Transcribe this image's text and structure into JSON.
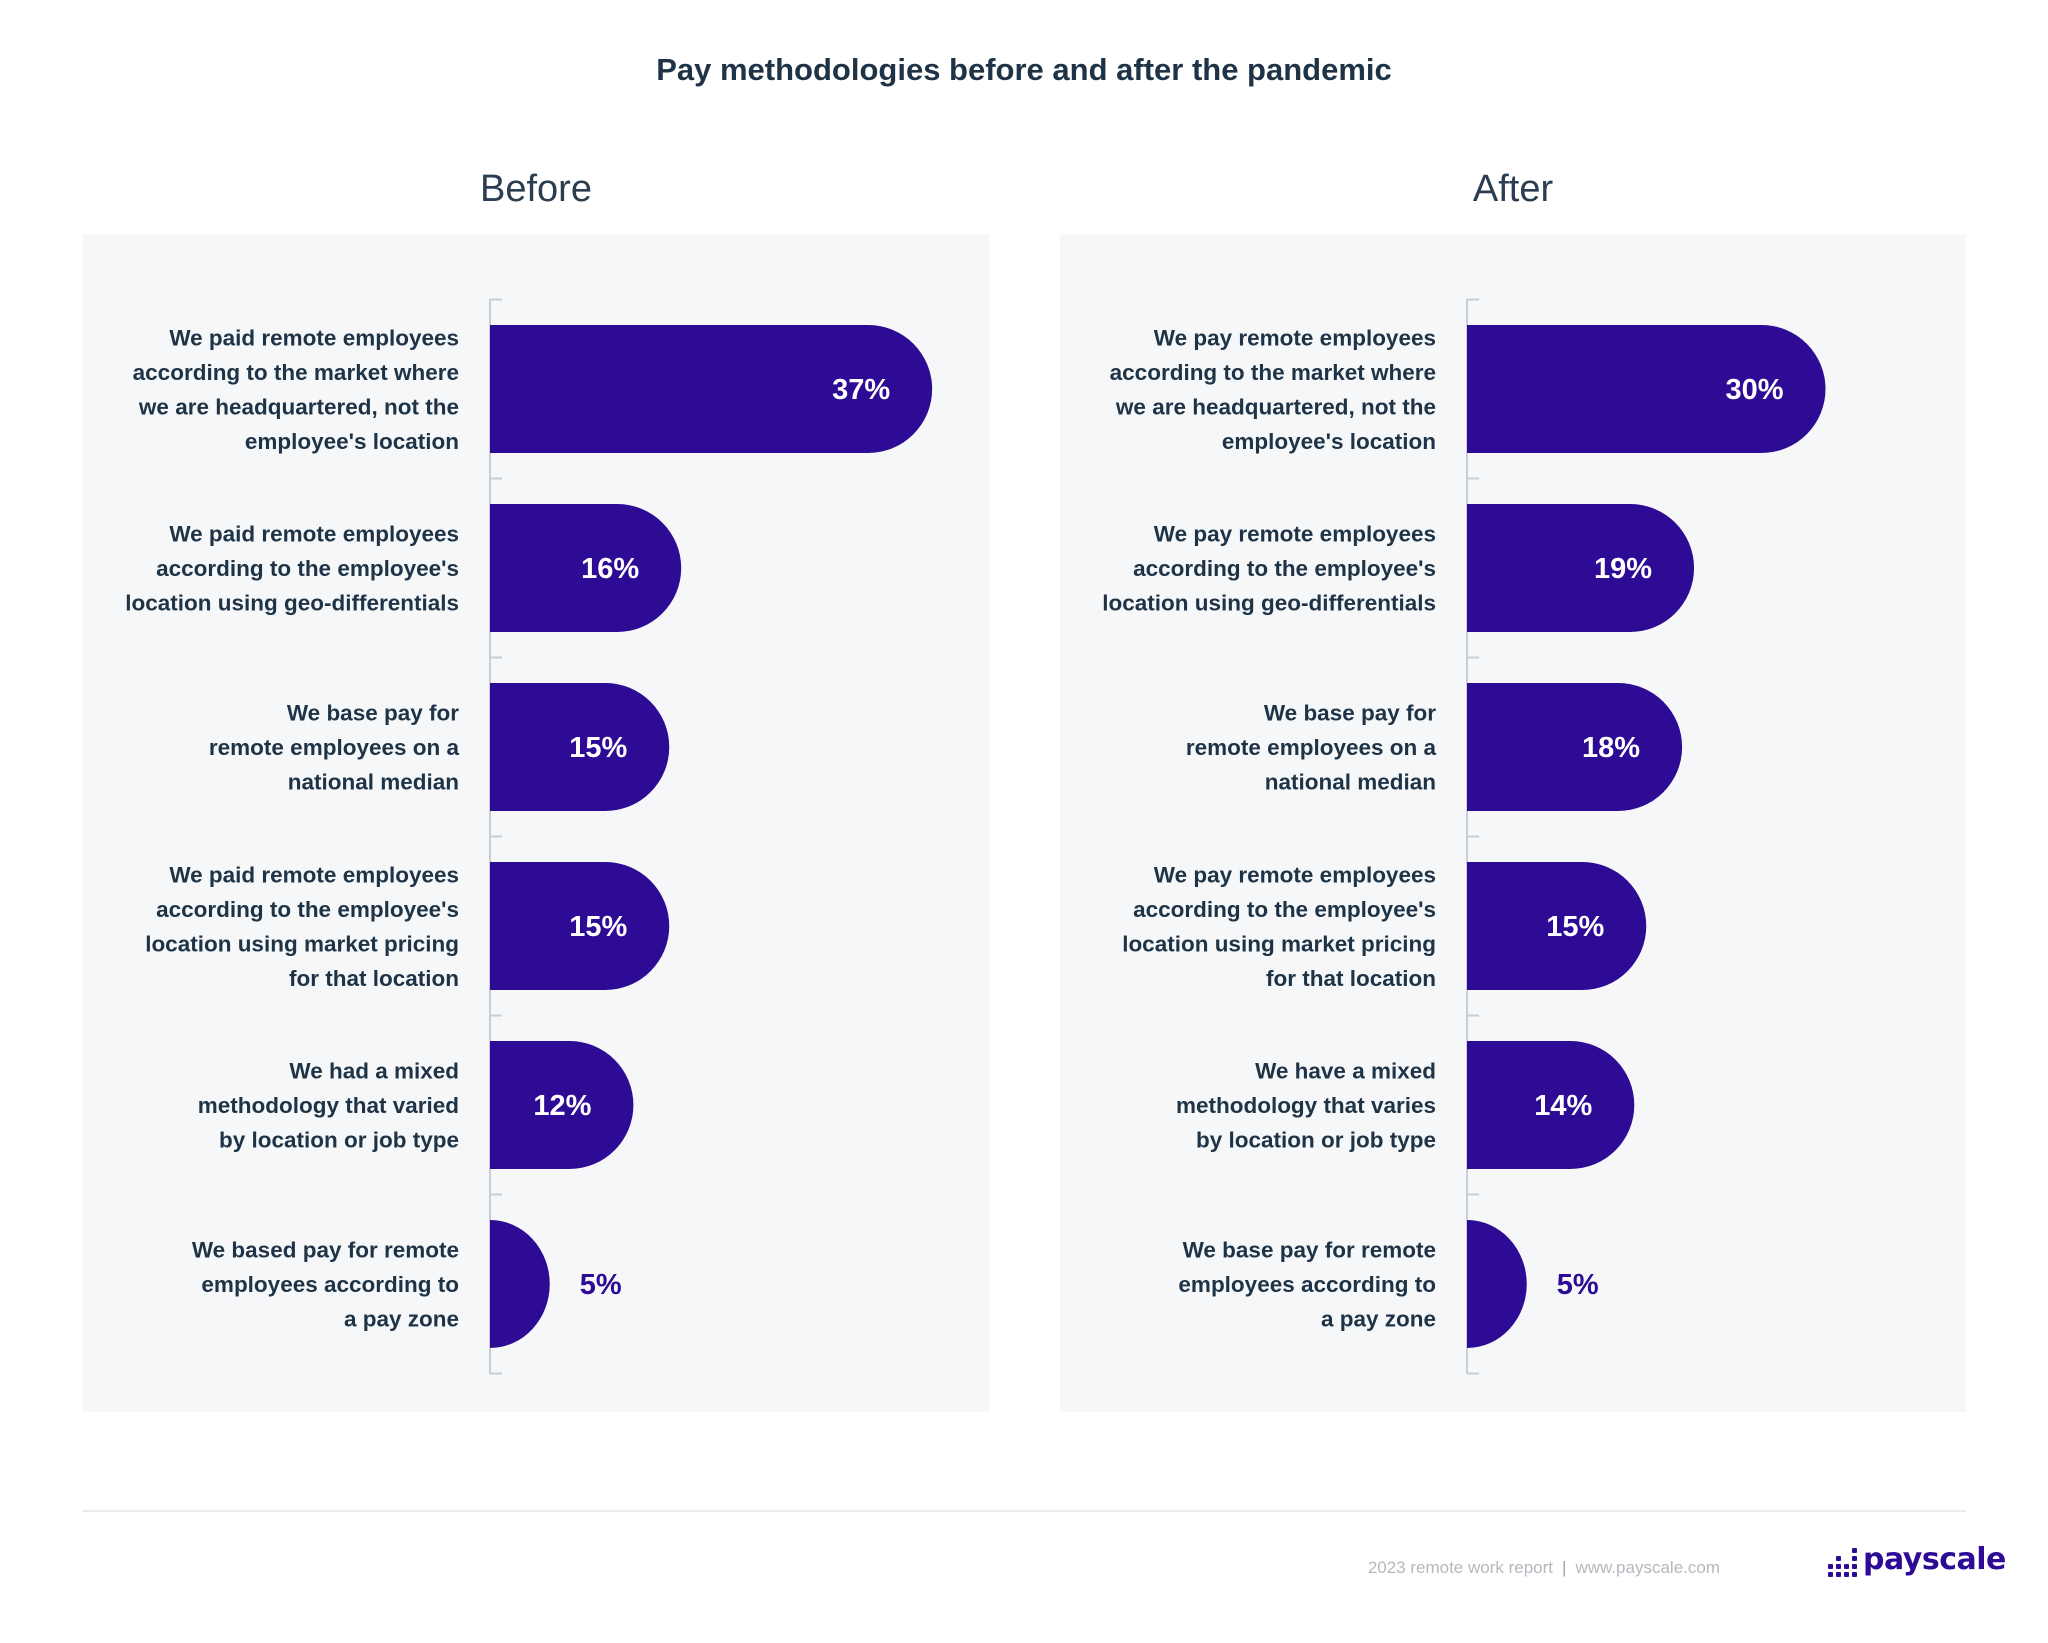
{
  "title": "Pay methodologies before and after the pandemic",
  "colors": {
    "bar": "#2e0b95",
    "panel_bg": "#f5f7f8",
    "text": "#1f3347",
    "axis": "#c8ced4"
  },
  "chart_data": [
    {
      "type": "bar",
      "orientation": "horizontal",
      "title": "Before",
      "xlim": [
        0,
        40
      ],
      "grid": false,
      "categories": [
        "We paid remote employees\naccording to the market where\nwe are headquartered, not the\nemployee's location",
        "We paid remote employees\naccording to the employee's\nlocation using geo-differentials",
        "We base pay for\nremote employees on a\nnational median",
        "We paid remote employees\naccording to the employee's\nlocation using market pricing\nfor that location",
        "We had a mixed\nmethodology that varied\nby location or job type",
        "We based pay for remote\nemployees according to\na pay zone"
      ],
      "values": [
        37,
        16,
        15,
        15,
        12,
        5
      ],
      "value_labels": [
        "37%",
        "16%",
        "15%",
        "15%",
        "12%",
        "5%"
      ]
    },
    {
      "type": "bar",
      "orientation": "horizontal",
      "title": "After",
      "xlim": [
        0,
        40
      ],
      "grid": false,
      "categories": [
        "We pay remote employees\naccording to the market where\nwe are headquartered, not the\nemployee's location",
        "We pay remote employees\naccording to the employee's\nlocation using geo-differentials",
        "We base pay for\nremote employees on a\nnational median",
        "We pay remote employees\naccording to the employee's\nlocation using market pricing\nfor that location",
        "We have a mixed\nmethodology that varies\nby location or job type",
        "We base pay for remote\nemployees according to\na pay zone"
      ],
      "values": [
        30,
        19,
        18,
        15,
        14,
        5
      ],
      "value_labels": [
        "30%",
        "19%",
        "18%",
        "15%",
        "14%",
        "5%"
      ]
    }
  ],
  "footer": {
    "report": "2023 remote work report",
    "separator": "|",
    "url": "www.payscale.com",
    "logo_text": "payscale"
  }
}
